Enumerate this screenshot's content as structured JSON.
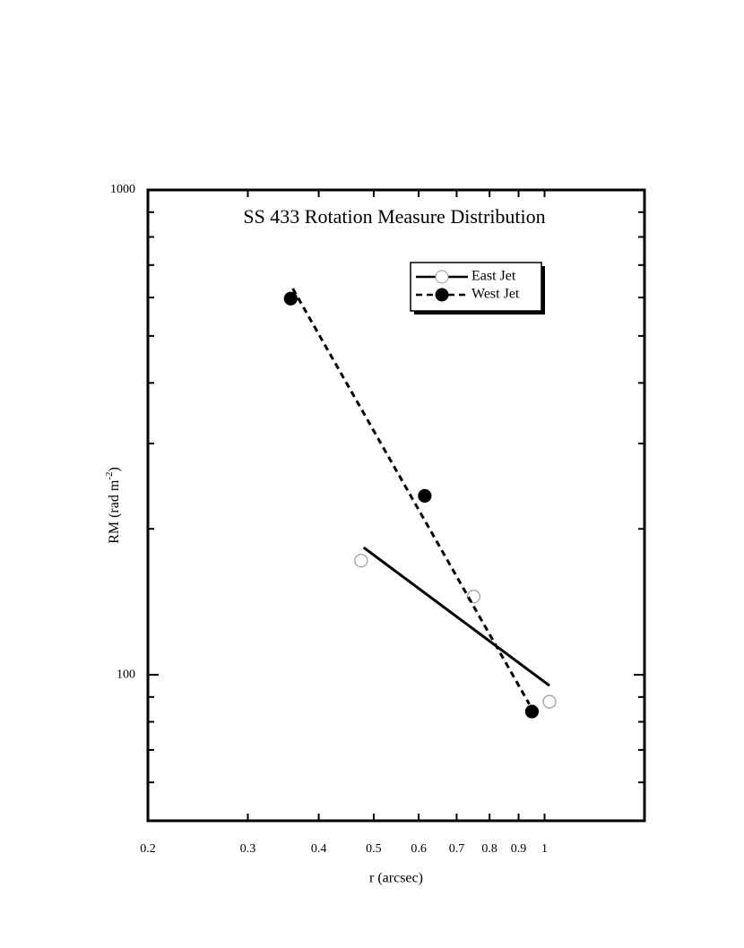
{
  "chart_data": {
    "type": "scatter",
    "title": "SS 433 Rotation Measure Distribution",
    "x_label": "r (arcsec)",
    "y_label": [
      "RM (rad m",
      "-2",
      ")"
    ],
    "xscale": "log",
    "yscale": "log",
    "xlim": [
      0.2,
      1.5
    ],
    "ylim": [
      50,
      1000
    ],
    "xticks": [
      0.2,
      0.3,
      0.4,
      0.5,
      0.6,
      0.7,
      0.8,
      0.9,
      1
    ],
    "yticks": [
      100,
      1000
    ],
    "yminorticks": [
      60,
      70,
      80,
      90,
      200,
      300,
      400,
      500,
      600,
      700,
      800,
      900
    ],
    "legend": "upper right",
    "series": [
      {
        "name": "East Jet",
        "color": "#000000",
        "marker": "open",
        "line": "solid",
        "x": [
          0.475,
          0.75,
          1.02
        ],
        "values": [
          172,
          145,
          88
        ],
        "fit_x": [
          0.48,
          1.02
        ],
        "fit_values": [
          183,
          95
        ]
      },
      {
        "name": "West Jet",
        "color": "#000000",
        "marker": "filled",
        "line": "dashed",
        "x": [
          0.357,
          0.615,
          0.95
        ],
        "values": [
          597,
          234,
          84
        ],
        "fit_x": [
          0.36,
          0.94
        ],
        "fit_values": [
          626,
          87
        ]
      }
    ]
  }
}
